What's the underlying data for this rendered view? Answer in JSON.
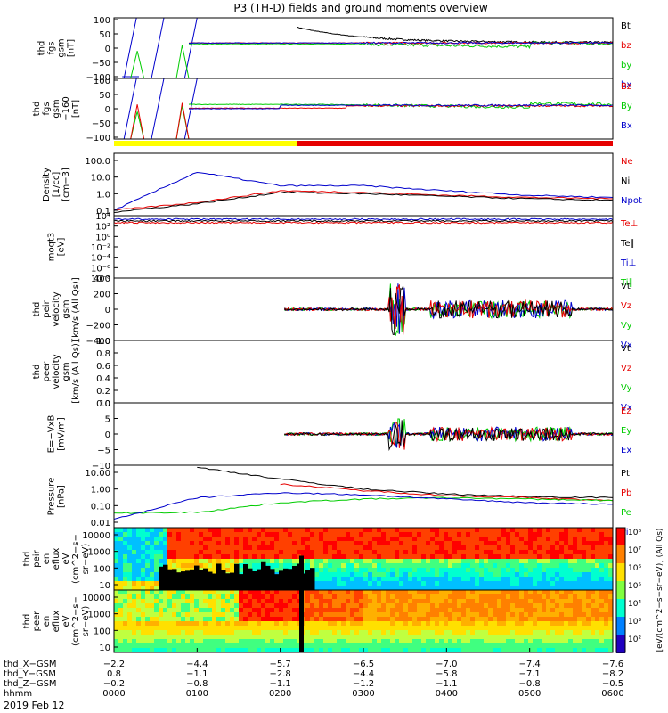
{
  "title": "P3 (TH-D) fields and ground moments overview",
  "date_label": "2019 Feb 12",
  "colors": {
    "black": "#000000",
    "red": "#e60000",
    "green": "#00cc00",
    "blue": "#0000cc",
    "yellow": "#ffff00"
  },
  "panels": [
    {
      "id": "fgs",
      "ylabel": [
        "thd",
        "fgs",
        "gsm",
        "[nT]"
      ],
      "ticks": [
        "100",
        "50",
        "0",
        "−50",
        "−100"
      ],
      "legend": [
        {
          "t": "Bt",
          "c": "black"
        },
        {
          "t": "bz",
          "c": "red"
        },
        {
          "t": "by",
          "c": "green"
        },
        {
          "t": "bx",
          "c": "blue"
        }
      ]
    },
    {
      "id": "fgs2",
      "ylabel": [
        "thd",
        "fgs",
        "gsm",
        "−160",
        "[nT]"
      ],
      "ticks": [
        "100",
        "50",
        "0",
        "−50",
        "−100"
      ],
      "legend": [
        {
          "t": "Bz",
          "c": "red"
        },
        {
          "t": "By",
          "c": "green"
        },
        {
          "t": "Bx",
          "c": "blue"
        }
      ]
    },
    {
      "id": "density",
      "ylabel": [
        "Density",
        "[1/cc]",
        "[cm−3]"
      ],
      "ticks": [
        "100.0",
        "10.0",
        "1.0",
        "0.1"
      ],
      "legend": [
        {
          "t": "Ne",
          "c": "red"
        },
        {
          "t": "Ni",
          "c": "black"
        },
        {
          "t": "Npot",
          "c": "blue"
        }
      ]
    },
    {
      "id": "temp",
      "ylabel": [
        "moqt3",
        "[eV]"
      ],
      "ticks": [
        "10⁴",
        "10²",
        "10⁰",
        "10⁻²",
        "10⁻⁴",
        "10⁻⁶",
        "10⁻⁸"
      ],
      "legend": [
        {
          "t": "Te⊥",
          "c": "red"
        },
        {
          "t": "Te∥",
          "c": "black"
        },
        {
          "t": "Ti⊥",
          "c": "blue"
        },
        {
          "t": "Ti∥",
          "c": "green"
        }
      ]
    },
    {
      "id": "pvel",
      "ylabel": [
        "thd",
        "peir",
        "velocity",
        "gsm",
        "[km/s (All Qs)]"
      ],
      "ticks": [
        "400",
        "200",
        "0",
        "−200",
        "−400"
      ],
      "legend": [
        {
          "t": "Vt",
          "c": "black"
        },
        {
          "t": "Vz",
          "c": "red"
        },
        {
          "t": "Vy",
          "c": "green"
        },
        {
          "t": "Vx",
          "c": "blue"
        }
      ]
    },
    {
      "id": "evel",
      "ylabel": [
        "thd",
        "peer",
        "velocity",
        "gsm",
        "[km/s (All Qs)]"
      ],
      "ticks": [
        "1.0",
        "0.8",
        "0.6",
        "0.4",
        "0.2",
        "0.0"
      ],
      "legend": [
        {
          "t": "Vt",
          "c": "black"
        },
        {
          "t": "Vz",
          "c": "red"
        },
        {
          "t": "Vy",
          "c": "green"
        },
        {
          "t": "Vx",
          "c": "blue"
        }
      ]
    },
    {
      "id": "efield",
      "ylabel": [
        "E=−VxB",
        "[mV/m]"
      ],
      "ticks": [
        "10",
        "5",
        "0",
        "−5",
        "−10"
      ],
      "legend": [
        {
          "t": "Ez",
          "c": "red"
        },
        {
          "t": "Ey",
          "c": "green"
        },
        {
          "t": "Ex",
          "c": "blue"
        }
      ]
    },
    {
      "id": "pressure",
      "ylabel": [
        "Pressure",
        "[nPa]"
      ],
      "ticks": [
        "10.00",
        "1.00",
        "0.10",
        "0.01"
      ],
      "legend": [
        {
          "t": "Pt",
          "c": "black"
        },
        {
          "t": "Pb",
          "c": "red"
        },
        {
          "t": "Pe",
          "c": "green"
        },
        {
          "t": "Pi",
          "c": "blue"
        }
      ]
    },
    {
      "id": "ispec",
      "ylabel": [
        "thd",
        "peir",
        "en",
        "eflux",
        "eV",
        "(cm^2−s−",
        "sr−eV)"
      ],
      "ticks": [
        "10000",
        "1000",
        "100",
        "10"
      ],
      "legend": []
    },
    {
      "id": "espec",
      "ylabel": [
        "thd",
        "peer",
        "en",
        "eflux",
        "eV",
        "(cm^2−s−",
        "sr−eV)"
      ],
      "ticks": [
        "10000",
        "1000",
        "100",
        "10"
      ],
      "legend": []
    }
  ],
  "colorbar": {
    "label": "[eV/(cm^2−s−sr−eV)] (All Qs)",
    "ticks": [
      "10⁸",
      "10⁷",
      "10⁶",
      "10⁵",
      "10⁴",
      "10³",
      "10²"
    ]
  },
  "xaxis": {
    "row_labels": [
      "thd_X−GSM",
      "thd_Y−GSM",
      "thd_Z−GSM",
      "hhmm"
    ],
    "columns": [
      [
        "−2.2",
        "0.8",
        "−0.2",
        "0000"
      ],
      [
        "−4.4",
        "−1.1",
        "−0.8",
        "0100"
      ],
      [
        "−5.7",
        "−2.8",
        "−1.1",
        "0200"
      ],
      [
        "−6.5",
        "−4.4",
        "−1.2",
        "0300"
      ],
      [
        "−7.0",
        "−5.8",
        "−1.1",
        "0400"
      ],
      [
        "−7.4",
        "−7.1",
        "−0.8",
        "0500"
      ],
      [
        "−7.6",
        "−8.2",
        "−0.5",
        "0600"
      ]
    ]
  },
  "chart_data": [
    {
      "type": "line",
      "title": "P3 (TH-D) fields and ground moments overview",
      "panel": "fgs",
      "ylim": [
        -100,
        100
      ],
      "x_hhmm": [
        "0000",
        "0100",
        "0200",
        "0300",
        "0400",
        "0500",
        "0600"
      ],
      "series": [
        {
          "name": "Bt",
          "values": [
            null,
            null,
            90,
            45,
            30,
            25,
            20
          ]
        },
        {
          "name": "bz",
          "values": [
            null,
            null,
            20,
            18,
            22,
            18,
            15
          ]
        },
        {
          "name": "by",
          "values": [
            null,
            null,
            15,
            -5,
            -15,
            -8,
            -5
          ]
        },
        {
          "name": "bx",
          "values": [
            null,
            20,
            15,
            10,
            10,
            12,
            15
          ]
        }
      ]
    },
    {
      "type": "line",
      "panel": "density",
      "ylim": [
        0.1,
        100
      ],
      "x_hhmm": [
        "0000",
        "0100",
        "0200",
        "0300",
        "0400",
        "0500",
        "0600"
      ],
      "series": [
        {
          "name": "Ne",
          "values": [
            0.1,
            0.3,
            1.5,
            1.2,
            0.8,
            0.6,
            0.5
          ]
        },
        {
          "name": "Ni",
          "values": [
            0.08,
            0.25,
            1.2,
            1.0,
            0.7,
            0.5,
            0.4
          ]
        },
        {
          "name": "Npot",
          "values": [
            0.1,
            20,
            3,
            3,
            1.5,
            0.8,
            0.6
          ]
        }
      ]
    },
    {
      "type": "line",
      "panel": "pressure",
      "ylim": [
        0.005,
        20
      ],
      "x_hhmm": [
        "0000",
        "0100",
        "0200",
        "0300",
        "0400",
        "0500",
        "0600"
      ],
      "series": [
        {
          "name": "Pt",
          "values": [
            null,
            20,
            4,
            1.0,
            0.5,
            0.35,
            0.3
          ]
        },
        {
          "name": "Pb",
          "values": [
            null,
            null,
            2,
            0.8,
            0.4,
            0.3,
            0.2
          ]
        },
        {
          "name": "Pe",
          "values": [
            0.035,
            0.04,
            0.15,
            0.25,
            0.3,
            0.25,
            0.2
          ]
        },
        {
          "name": "Pi",
          "values": [
            0.015,
            0.3,
            0.6,
            0.45,
            0.25,
            0.15,
            0.12
          ]
        }
      ]
    },
    {
      "type": "heatmap",
      "panel": "ispec",
      "ylim": [
        10,
        20000
      ]
    },
    {
      "type": "heatmap",
      "panel": "espec",
      "ylim": [
        10,
        20000
      ]
    }
  ]
}
